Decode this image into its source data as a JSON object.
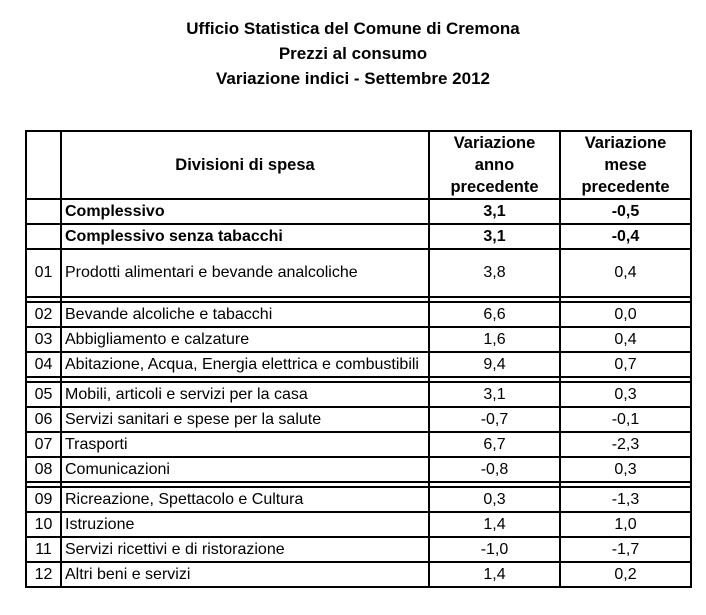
{
  "title": {
    "line1": "Ufficio Statistica del Comune di Cremona",
    "line2": "Prezzi al consumo",
    "line3": "Variazione indici - Settembre 2012"
  },
  "table": {
    "headers": {
      "code": "",
      "division": "Divisioni di spesa",
      "year": "Variazione anno precedente",
      "month": "Variazione mese precedente"
    },
    "rows": [
      {
        "code": "",
        "label": "Complessivo",
        "year": "3,1",
        "month": "-0,5",
        "bold": true
      },
      {
        "code": "",
        "label": "Complessivo senza tabacchi",
        "year": "3,1",
        "month": "-0,4",
        "bold": true
      },
      {
        "code": "01",
        "label": "Prodotti alimentari e bevande analcoliche",
        "year": "3,8",
        "month": "0,4"
      },
      {
        "code": "02",
        "label": "Bevande alcoliche e tabacchi",
        "year": "6,6",
        "month": "0,0"
      },
      {
        "code": "03",
        "label": "Abbigliamento e calzature",
        "year": "1,6",
        "month": "0,4"
      },
      {
        "code": "04",
        "label": "Abitazione, Acqua, Energia elettrica e combustibili",
        "year": "9,4",
        "month": "0,7"
      },
      {
        "code": "05",
        "label": "Mobili, articoli e servizi per la casa",
        "year": "3,1",
        "month": "0,3"
      },
      {
        "code": "06",
        "label": "Servizi sanitari e spese per la salute",
        "year": "-0,7",
        "month": "-0,1"
      },
      {
        "code": "07",
        "label": "Trasporti",
        "year": "6,7",
        "month": "-2,3"
      },
      {
        "code": "08",
        "label": "Comunicazioni",
        "year": "-0,8",
        "month": "0,3"
      },
      {
        "code": "09",
        "label": "Ricreazione, Spettacolo e Cultura",
        "year": "0,3",
        "month": "-1,3"
      },
      {
        "code": "10",
        "label": "Istruzione",
        "year": "1,4",
        "month": "1,0"
      },
      {
        "code": "11",
        "label": "Servizi ricettivi e di ristorazione",
        "year": "-1,0",
        "month": "-1,7"
      },
      {
        "code": "12",
        "label": "Altri beni e servizi",
        "year": "1,4",
        "month": "0,2"
      }
    ]
  },
  "colors": {
    "text": "#000000",
    "background": "#ffffff",
    "border": "#000000"
  }
}
